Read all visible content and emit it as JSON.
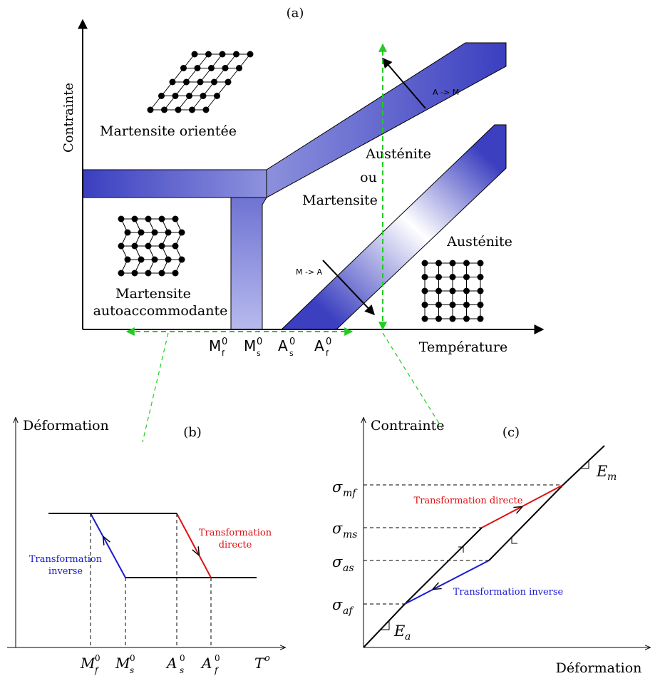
{
  "panel_a": {
    "label": "(a)",
    "axis_y": "Contrainte",
    "axis_x": "Température",
    "region_oriented": "Martensite orientée",
    "region_auto_1": "Martensite",
    "region_auto_2": "autoaccommodante",
    "region_mixed_1": "Austénite",
    "region_mixed_2": "ou",
    "region_mixed_3": "Martensite",
    "region_austenite": "Austénite",
    "arrow_am": "A -> M",
    "arrow_ma": "M -> A",
    "temps": [
      {
        "base": "M",
        "sub": "f",
        "sup": "0"
      },
      {
        "base": "M",
        "sub": "s",
        "sup": "0"
      },
      {
        "base": "A",
        "sub": "s",
        "sup": "0"
      },
      {
        "base": "A",
        "sub": "f",
        "sup": "0"
      }
    ]
  },
  "panel_b": {
    "label": "(b)",
    "axis_y": "Déformation",
    "axis_x_base": "T",
    "axis_x_sup": "o",
    "direct_1": "Transformation",
    "direct_2": "directe",
    "inverse_1": "Transformation",
    "inverse_2": "inverse",
    "temps": [
      {
        "base": "M",
        "sub": "f",
        "sup": "0"
      },
      {
        "base": "M",
        "sub": "s",
        "sup": "0"
      },
      {
        "base": "A",
        "sub": "s",
        "sup": "0"
      },
      {
        "base": "A",
        "sub": "f",
        "sup": "0"
      }
    ]
  },
  "panel_c": {
    "label": "(c)",
    "axis_y": "Contrainte",
    "axis_x": "Déformation",
    "direct": "Transformation directe",
    "inverse": "Transformation inverse",
    "stresses": [
      {
        "base": "σ",
        "sub": "mf"
      },
      {
        "base": "σ",
        "sub": "ms"
      },
      {
        "base": "σ",
        "sub": "as"
      },
      {
        "base": "σ",
        "sub": "af"
      }
    ],
    "modulus_m": {
      "base": "E",
      "sub": "m"
    },
    "modulus_a": {
      "base": "E",
      "sub": "a"
    }
  },
  "colors": {
    "band": "#3b3fc0",
    "band_light": "#c6c8f0",
    "guide": "#22cc22",
    "direct": "#e01010",
    "inverse": "#1a1ad0"
  }
}
